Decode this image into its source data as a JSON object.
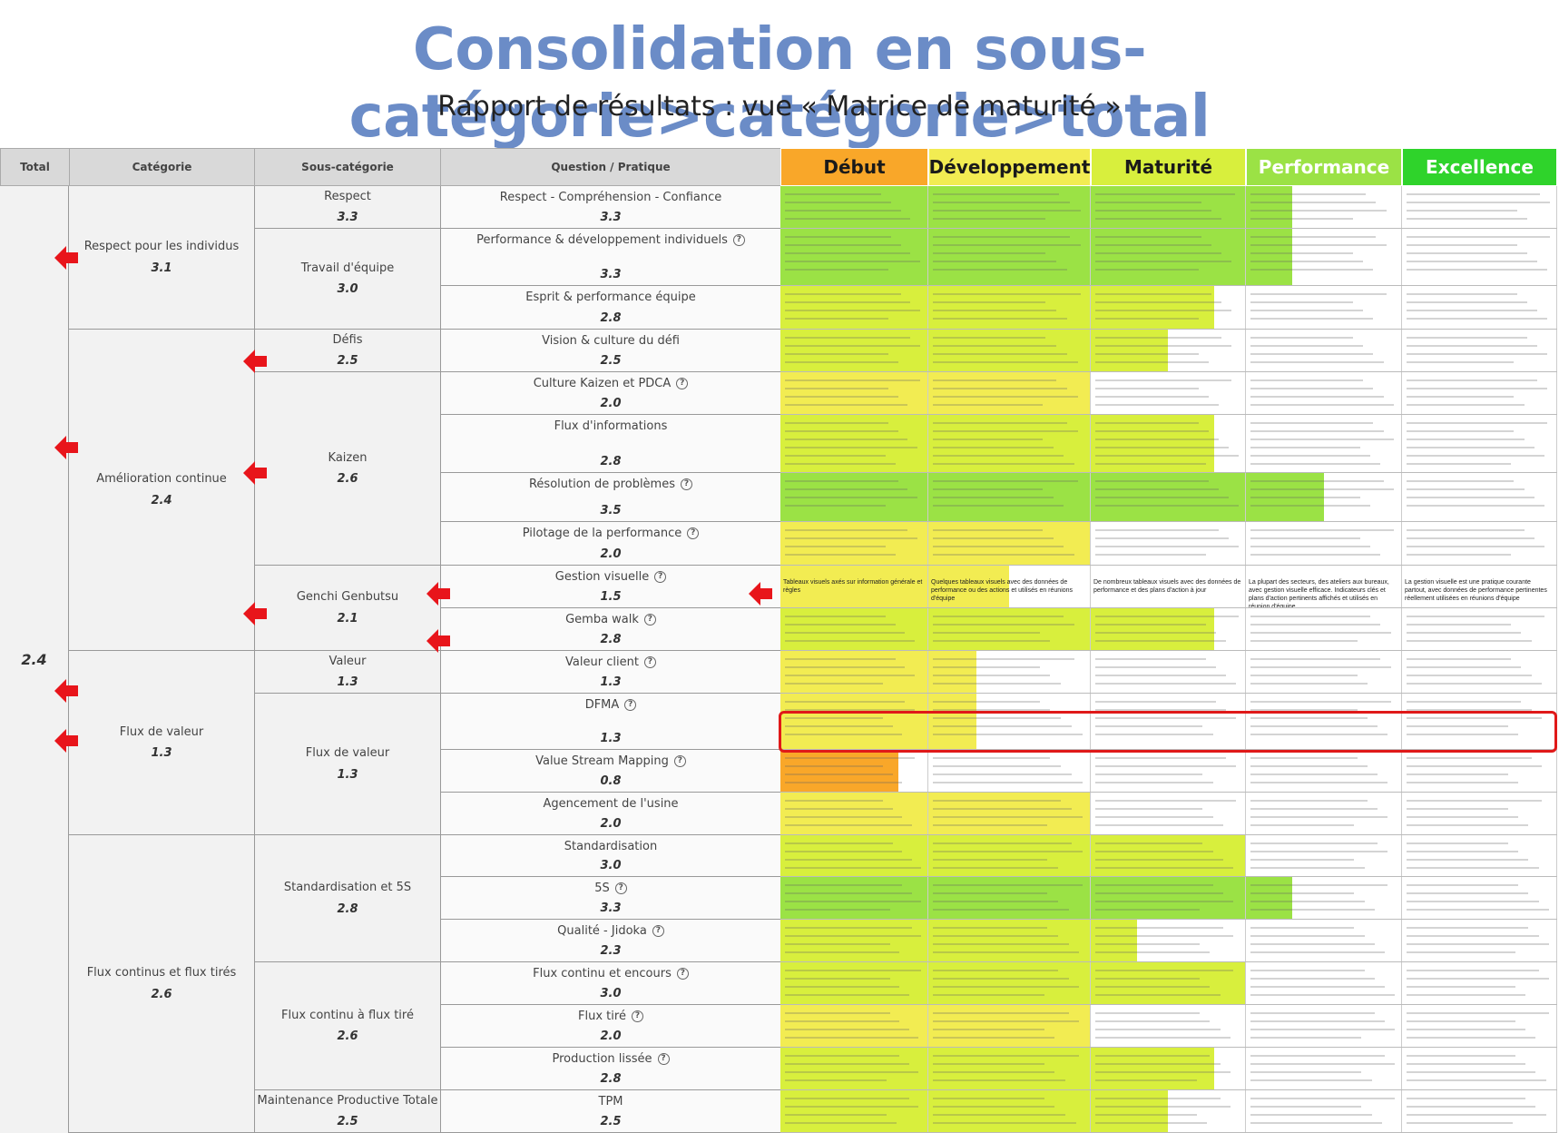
{
  "title": "Consolidation en sous-catégorie>catégorie>total",
  "subtitle": "Rapport de résultats : vue « Matrice de maturité »",
  "headers": {
    "total": "Total",
    "category": "Catégorie",
    "subcategory": "Sous-catégorie",
    "question": "Question / Pratique"
  },
  "levels": [
    {
      "label": "Début",
      "bg": "#f9a729",
      "color": "#1a1a1a"
    },
    {
      "label": "Développement",
      "bg": "#f2ec52",
      "color": "#1a1a1a"
    },
    {
      "label": "Maturité",
      "bg": "#d8ef3d",
      "color": "#1a1a1a"
    },
    {
      "label": "Performance",
      "bg": "#9be245",
      "color": "#ffffff"
    },
    {
      "label": "Excellence",
      "bg": "#2fd32b",
      "color": "#ffffff"
    }
  ],
  "total": "2.4",
  "categories": [
    {
      "label": "Respect pour les individus",
      "score": "3.1"
    },
    {
      "label": "Amélioration continue",
      "score": "2.4"
    },
    {
      "label": "Flux de valeur",
      "score": "1.3"
    },
    {
      "label": "Flux continus et flux tirés",
      "score": "2.6"
    }
  ],
  "subcategories": [
    {
      "label": "Respect",
      "score": "3.3"
    },
    {
      "label": "Travail d'équipe",
      "score": "3.0"
    },
    {
      "label": "Défis",
      "score": "2.5"
    },
    {
      "label": "Kaizen",
      "score": "2.6"
    },
    {
      "label": "Genchi Genbutsu",
      "score": "2.1"
    },
    {
      "label": "Valeur",
      "score": "1.3"
    },
    {
      "label": "Flux de valeur",
      "score": "1.3"
    },
    {
      "label": "Standardisation et 5S",
      "score": "2.8"
    },
    {
      "label": "Flux continu à flux tiré",
      "score": "2.6"
    },
    {
      "label": "Maintenance Productive Totale",
      "score": "2.5"
    }
  ],
  "questions": [
    {
      "label": "Respect - Compréhension - Confiance",
      "score": "3.3",
      "info": false
    },
    {
      "label": "Performance & développement individuels",
      "score": "3.3",
      "info": true
    },
    {
      "label": "Esprit & performance équipe",
      "score": "2.8",
      "info": false
    },
    {
      "label": "Vision & culture du défi",
      "score": "2.5",
      "info": false
    },
    {
      "label": "Culture Kaizen et PDCA",
      "score": "2.0",
      "info": true
    },
    {
      "label": "Flux d'informations",
      "score": "2.8",
      "info": false
    },
    {
      "label": "Résolution de problèmes",
      "score": "3.5",
      "info": true
    },
    {
      "label": "Pilotage de la performance",
      "score": "2.0",
      "info": true
    },
    {
      "label": "Gestion visuelle",
      "score": "1.5",
      "info": true
    },
    {
      "label": "Gemba walk",
      "score": "2.8",
      "info": true
    },
    {
      "label": "Valeur client",
      "score": "1.3",
      "info": true
    },
    {
      "label": "DFMA",
      "score": "1.3",
      "info": true
    },
    {
      "label": "Value Stream Mapping",
      "score": "0.8",
      "info": true
    },
    {
      "label": "Agencement de l'usine",
      "score": "2.0",
      "info": false
    },
    {
      "label": "Standardisation",
      "score": "3.0",
      "info": false
    },
    {
      "label": "5S",
      "score": "3.3",
      "info": true
    },
    {
      "label": "Qualité - Jidoka",
      "score": "2.3",
      "info": true
    },
    {
      "label": "Flux continu et encours",
      "score": "3.0",
      "info": true
    },
    {
      "label": "Flux tiré",
      "score": "2.0",
      "info": true
    },
    {
      "label": "Production lissée",
      "score": "2.8",
      "info": true
    },
    {
      "label": "TPM",
      "score": "2.5",
      "info": false
    }
  ],
  "gestion_visuelle_texts": [
    "Tableaux visuels axés sur information générale et règles",
    "Quelques tableaux visuels avec des données de performance ou des actions et utilisés en réunions d'équipe",
    "De nombreux tableaux visuels avec des données de performance et des plans d'action à jour",
    "La plupart des secteurs, des ateliers aux bureaux, avec gestion visuelle efficace. Indicateurs clés et plans d'action pertinents affichés et utilisés en réunion d'équipe",
    "La gestion visuelle est une pratique courante partout, avec données de performance pertinentes réellement utilisées en réunions d'équipe"
  ],
  "colors": {
    "title": "#6b8cc7",
    "debut": "#f9a729",
    "developpement": "#f2ec52",
    "maturite": "#d8ef3d",
    "performance": "#9be245",
    "excellence": "#2fd32b",
    "highlight": "#e01919",
    "arrow": "#e8151b"
  },
  "icons": {
    "info": "info-circle-icon",
    "arrow": "arrow-left-icon"
  }
}
